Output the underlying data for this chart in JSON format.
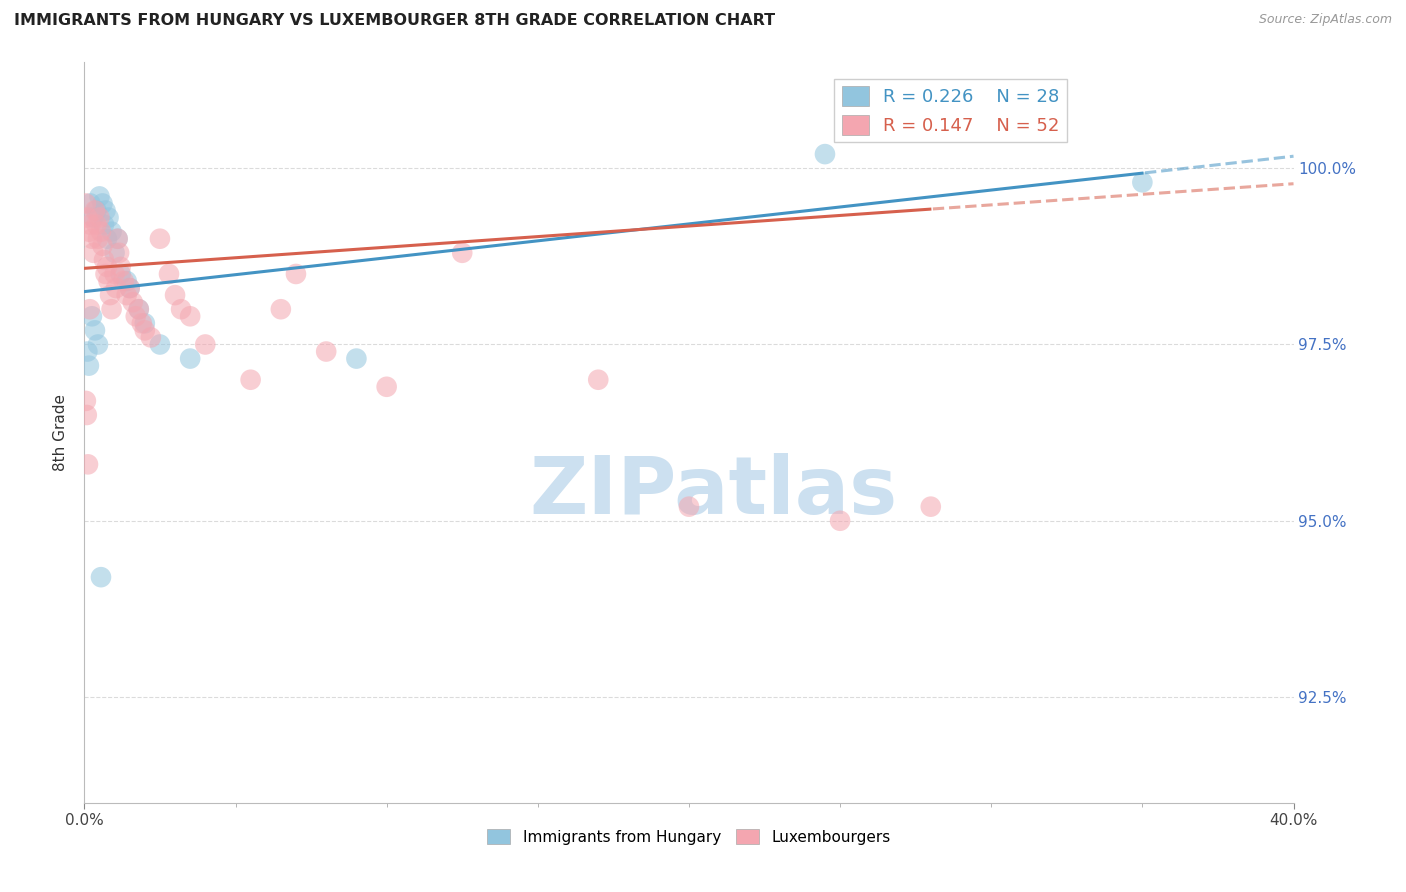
{
  "title": "IMMIGRANTS FROM HUNGARY VS LUXEMBOURGER 8TH GRADE CORRELATION CHART",
  "source": "Source: ZipAtlas.com",
  "ylabel": "8th Grade",
  "xlim": [
    0.0,
    40.0
  ],
  "ylim": [
    91.0,
    101.5
  ],
  "blue_color": "#92c5de",
  "pink_color": "#f4a6b0",
  "blue_line_color": "#4393c3",
  "pink_line_color": "#d6604d",
  "tick_label_color": "#4472c4",
  "grid_color": "#cccccc",
  "background_color": "#ffffff",
  "watermark_color": "#cce0f0",
  "blue_label": "Immigrants from Hungary",
  "pink_label": "Luxembourgers",
  "legend_blue": "R = 0.226    N = 28",
  "legend_pink": "R = 0.147    N = 52",
  "blue_x": [
    0.2,
    0.3,
    0.4,
    0.5,
    0.6,
    0.65,
    0.7,
    0.75,
    0.8,
    0.9,
    1.0,
    1.1,
    1.2,
    1.4,
    1.5,
    1.8,
    2.0,
    2.5,
    3.5,
    0.1,
    0.15,
    0.25,
    0.35,
    0.45,
    9.0,
    24.5,
    35.0,
    0.55
  ],
  "blue_y": [
    99.5,
    99.3,
    99.4,
    99.6,
    99.5,
    99.2,
    99.4,
    99.0,
    99.3,
    99.1,
    98.8,
    99.0,
    98.5,
    98.4,
    98.3,
    98.0,
    97.8,
    97.5,
    97.3,
    97.4,
    97.2,
    97.9,
    97.7,
    97.5,
    97.3,
    100.2,
    99.8,
    94.2
  ],
  "pink_x": [
    0.05,
    0.1,
    0.15,
    0.2,
    0.25,
    0.3,
    0.35,
    0.4,
    0.45,
    0.5,
    0.55,
    0.6,
    0.65,
    0.7,
    0.75,
    0.8,
    0.85,
    0.9,
    1.0,
    1.05,
    1.1,
    1.15,
    1.2,
    1.3,
    1.4,
    1.5,
    1.6,
    1.7,
    1.8,
    1.9,
    2.0,
    2.2,
    2.5,
    2.8,
    3.0,
    3.2,
    3.5,
    4.0,
    5.5,
    6.5,
    7.0,
    8.0,
    10.0,
    12.5,
    17.0,
    20.0,
    25.0,
    28.0,
    0.05,
    0.08,
    0.12,
    0.18
  ],
  "pink_y": [
    99.5,
    99.3,
    99.1,
    99.2,
    99.0,
    98.8,
    99.4,
    99.2,
    99.0,
    99.3,
    99.1,
    98.9,
    98.7,
    98.5,
    98.6,
    98.4,
    98.2,
    98.0,
    98.5,
    98.3,
    99.0,
    98.8,
    98.6,
    98.4,
    98.2,
    98.3,
    98.1,
    97.9,
    98.0,
    97.8,
    97.7,
    97.6,
    99.0,
    98.5,
    98.2,
    98.0,
    97.9,
    97.5,
    97.0,
    98.0,
    98.5,
    97.4,
    96.9,
    98.8,
    97.0,
    95.2,
    95.0,
    95.2,
    96.7,
    96.5,
    95.8,
    98.0
  ],
  "trend_x_start": 0.0,
  "trend_x_data_end_blue": 35.0,
  "trend_x_data_end_pink": 28.0,
  "trend_x_end": 40.0
}
